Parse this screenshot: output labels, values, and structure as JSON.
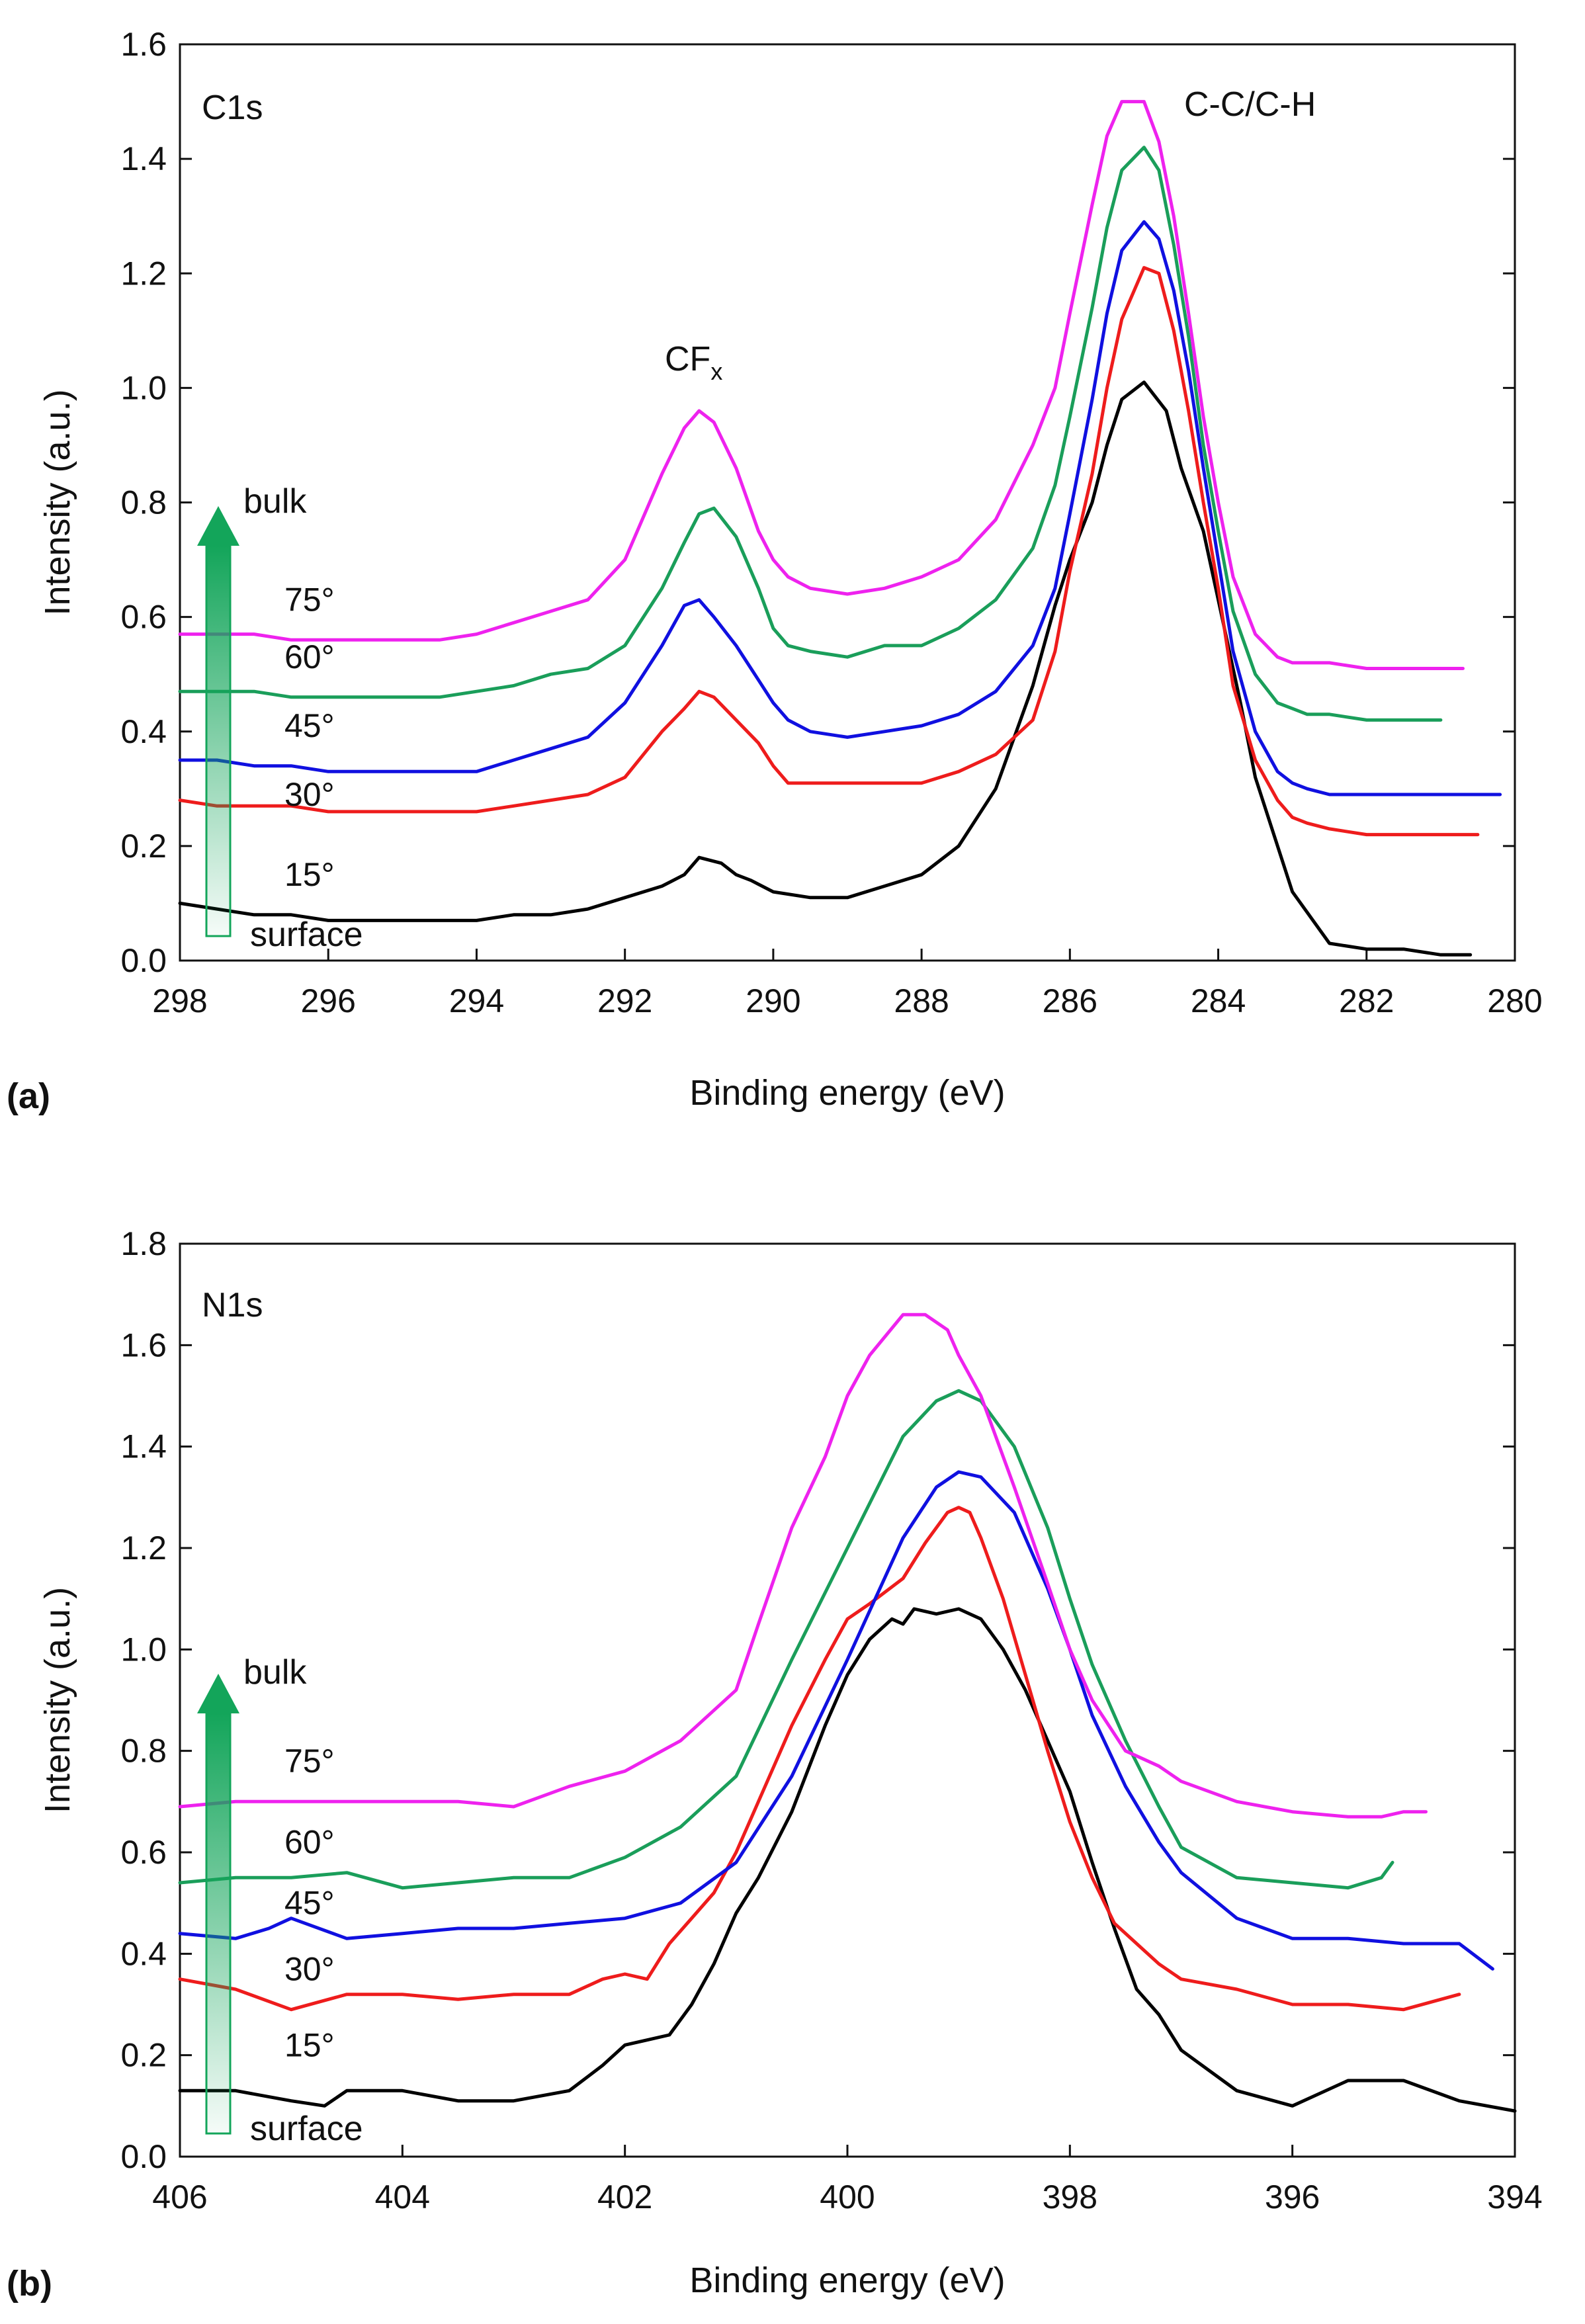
{
  "colors": {
    "deg15": "#000000",
    "deg30": "#ee1c1c",
    "deg45": "#1010e0",
    "deg60": "#1a9e5a",
    "deg75": "#ee22ee",
    "arrow": "#13a55a"
  },
  "chart_data": [
    {
      "type": "line",
      "panel": "(a)",
      "title": "C1s",
      "xlabel": "Binding energy (eV)",
      "ylabel": "Intensity (a.u.)",
      "xlim": [
        298,
        280
      ],
      "ylim": [
        0,
        1.6
      ],
      "xticks": [
        "298",
        "296",
        "294",
        "292",
        "290",
        "288",
        "286",
        "284",
        "282",
        "280"
      ],
      "yticks": [
        "0.0",
        "0.2",
        "0.4",
        "0.6",
        "0.8",
        "1.0",
        "1.2",
        "1.4",
        "1.6"
      ],
      "annotations": {
        "peak1_main": "CF",
        "peak1_sub": "x",
        "peak2": "C-C/C-H"
      },
      "arrow": {
        "top": "bulk",
        "bottom": "surface"
      },
      "series": [
        {
          "name": "15°",
          "color_key": "deg15",
          "x": [
            298,
            297.5,
            297,
            296.5,
            296,
            295.5,
            295,
            294.5,
            294,
            293.5,
            293,
            292.5,
            292,
            291.5,
            291.2,
            291,
            290.7,
            290.5,
            290.3,
            290,
            289.5,
            289,
            288.5,
            288,
            287.5,
            287,
            286.5,
            286.2,
            286,
            285.7,
            285.5,
            285.3,
            285,
            284.7,
            284.5,
            284.2,
            284,
            283.7,
            283.5,
            283,
            282.5,
            282,
            281.5,
            281,
            280.6
          ],
          "y": [
            0.1,
            0.09,
            0.08,
            0.08,
            0.07,
            0.07,
            0.07,
            0.07,
            0.07,
            0.08,
            0.08,
            0.09,
            0.11,
            0.13,
            0.15,
            0.18,
            0.17,
            0.15,
            0.14,
            0.12,
            0.11,
            0.11,
            0.13,
            0.15,
            0.2,
            0.3,
            0.48,
            0.62,
            0.7,
            0.8,
            0.9,
            0.98,
            1.01,
            0.96,
            0.86,
            0.75,
            0.63,
            0.45,
            0.32,
            0.12,
            0.03,
            0.02,
            0.02,
            0.01,
            0.01
          ]
        },
        {
          "name": "30°",
          "color_key": "deg30",
          "x": [
            298,
            297.5,
            297,
            296.5,
            296,
            295.5,
            295,
            294.5,
            294,
            293.5,
            293,
            292.5,
            292,
            291.5,
            291.2,
            291,
            290.8,
            290.5,
            290.2,
            290,
            289.8,
            289.5,
            289,
            288.5,
            288,
            287.5,
            287,
            286.5,
            286.2,
            286,
            285.7,
            285.5,
            285.3,
            285,
            284.8,
            284.6,
            284.4,
            284.2,
            284,
            283.8,
            283.5,
            283.2,
            283,
            282.8,
            282.5,
            282,
            281.5,
            281,
            280.5
          ],
          "y": [
            0.28,
            0.27,
            0.27,
            0.27,
            0.26,
            0.26,
            0.26,
            0.26,
            0.26,
            0.27,
            0.28,
            0.29,
            0.32,
            0.4,
            0.44,
            0.47,
            0.46,
            0.42,
            0.38,
            0.34,
            0.31,
            0.31,
            0.31,
            0.31,
            0.31,
            0.33,
            0.36,
            0.42,
            0.54,
            0.68,
            0.85,
            1.0,
            1.12,
            1.21,
            1.2,
            1.1,
            0.96,
            0.8,
            0.65,
            0.48,
            0.35,
            0.28,
            0.25,
            0.24,
            0.23,
            0.22,
            0.22,
            0.22,
            0.22
          ]
        },
        {
          "name": "45°",
          "color_key": "deg45",
          "x": [
            298,
            297.5,
            297,
            296.5,
            296,
            295.5,
            295,
            294.5,
            294,
            293.5,
            293,
            292.5,
            292,
            291.5,
            291.2,
            291,
            290.8,
            290.5,
            290.2,
            290,
            289.8,
            289.5,
            289,
            288.5,
            288,
            287.5,
            287,
            286.5,
            286.2,
            286,
            285.7,
            285.5,
            285.3,
            285,
            284.8,
            284.6,
            284.4,
            284.2,
            284,
            283.8,
            283.5,
            283.2,
            283,
            282.8,
            282.5,
            282,
            281.5,
            281,
            280.5,
            280.2
          ],
          "y": [
            0.35,
            0.35,
            0.34,
            0.34,
            0.33,
            0.33,
            0.33,
            0.33,
            0.33,
            0.35,
            0.37,
            0.39,
            0.45,
            0.55,
            0.62,
            0.63,
            0.6,
            0.55,
            0.49,
            0.45,
            0.42,
            0.4,
            0.39,
            0.4,
            0.41,
            0.43,
            0.47,
            0.55,
            0.65,
            0.78,
            0.98,
            1.13,
            1.24,
            1.29,
            1.26,
            1.17,
            1.03,
            0.86,
            0.7,
            0.54,
            0.4,
            0.33,
            0.31,
            0.3,
            0.29,
            0.29,
            0.29,
            0.29,
            0.29,
            0.29
          ]
        },
        {
          "name": "60°",
          "color_key": "deg60",
          "x": [
            298,
            297.5,
            297,
            296.5,
            296,
            295.5,
            295,
            294.5,
            294,
            293.5,
            293,
            292.5,
            292,
            291.5,
            291.2,
            291,
            290.8,
            290.5,
            290.2,
            290,
            289.8,
            289.5,
            289,
            288.5,
            288,
            287.5,
            287,
            286.5,
            286.2,
            286,
            285.7,
            285.5,
            285.3,
            285,
            284.8,
            284.6,
            284.4,
            284.2,
            284,
            283.8,
            283.5,
            283.2,
            283,
            282.8,
            282.5,
            282,
            281.5,
            281
          ],
          "y": [
            0.47,
            0.47,
            0.47,
            0.46,
            0.46,
            0.46,
            0.46,
            0.46,
            0.47,
            0.48,
            0.5,
            0.51,
            0.55,
            0.65,
            0.73,
            0.78,
            0.79,
            0.74,
            0.65,
            0.58,
            0.55,
            0.54,
            0.53,
            0.55,
            0.55,
            0.58,
            0.63,
            0.72,
            0.83,
            0.95,
            1.14,
            1.28,
            1.38,
            1.42,
            1.38,
            1.25,
            1.09,
            0.9,
            0.75,
            0.61,
            0.5,
            0.45,
            0.44,
            0.43,
            0.43,
            0.42,
            0.42,
            0.42
          ]
        },
        {
          "name": "75°",
          "color_key": "deg75",
          "x": [
            298,
            297.5,
            297,
            296.5,
            296,
            295.5,
            295,
            294.5,
            294,
            293.5,
            293,
            292.5,
            292,
            291.5,
            291.2,
            291,
            290.8,
            290.5,
            290.2,
            290,
            289.8,
            289.5,
            289,
            288.5,
            288,
            287.5,
            287,
            286.5,
            286.2,
            286,
            285.7,
            285.5,
            285.3,
            285,
            284.8,
            284.6,
            284.4,
            284.2,
            284,
            283.8,
            283.5,
            283.2,
            283,
            282.8,
            282.5,
            282,
            281.5,
            281,
            280.7
          ],
          "y": [
            0.57,
            0.57,
            0.57,
            0.56,
            0.56,
            0.56,
            0.56,
            0.56,
            0.57,
            0.59,
            0.61,
            0.63,
            0.7,
            0.85,
            0.93,
            0.96,
            0.94,
            0.86,
            0.75,
            0.7,
            0.67,
            0.65,
            0.64,
            0.65,
            0.67,
            0.7,
            0.77,
            0.9,
            1.0,
            1.13,
            1.32,
            1.44,
            1.5,
            1.5,
            1.43,
            1.3,
            1.13,
            0.95,
            0.8,
            0.67,
            0.57,
            0.53,
            0.52,
            0.52,
            0.52,
            0.51,
            0.51,
            0.51,
            0.51
          ]
        }
      ],
      "angle_labels": [
        {
          "text": "75°",
          "y": 0.63
        },
        {
          "text": "60°",
          "y": 0.53
        },
        {
          "text": "45°",
          "y": 0.41
        },
        {
          "text": "30°",
          "y": 0.29
        },
        {
          "text": "15°",
          "y": 0.15
        }
      ]
    },
    {
      "type": "line",
      "panel": "(b)",
      "title": "N1s",
      "xlabel": "Binding energy (eV)",
      "ylabel": "Intensity (a.u.)",
      "xlim": [
        406,
        394
      ],
      "ylim": [
        0,
        1.8
      ],
      "xticks": [
        "406",
        "404",
        "402",
        "400",
        "398",
        "396",
        "394"
      ],
      "yticks": [
        "0.0",
        "0.2",
        "0.4",
        "0.6",
        "0.8",
        "1.0",
        "1.2",
        "1.4",
        "1.6",
        "1.8"
      ],
      "arrow": {
        "top": "bulk",
        "bottom": "surface"
      },
      "series": [
        {
          "name": "15°",
          "color_key": "deg15",
          "x": [
            406,
            405.5,
            405,
            404.7,
            404.5,
            404,
            403.5,
            403,
            402.5,
            402.2,
            402,
            401.8,
            401.6,
            401.4,
            401.2,
            401,
            400.8,
            400.5,
            400.2,
            400,
            399.8,
            399.6,
            399.5,
            399.4,
            399.2,
            399,
            398.8,
            398.6,
            398.4,
            398.2,
            398,
            397.8,
            397.6,
            397.4,
            397.2,
            397,
            396.5,
            396,
            395.5,
            395,
            394.5,
            394
          ],
          "y": [
            0.13,
            0.13,
            0.11,
            0.1,
            0.13,
            0.13,
            0.11,
            0.11,
            0.13,
            0.18,
            0.22,
            0.23,
            0.24,
            0.3,
            0.38,
            0.48,
            0.55,
            0.68,
            0.85,
            0.95,
            1.02,
            1.06,
            1.05,
            1.08,
            1.07,
            1.08,
            1.06,
            1.0,
            0.92,
            0.82,
            0.72,
            0.58,
            0.45,
            0.33,
            0.28,
            0.21,
            0.13,
            0.1,
            0.15,
            0.15,
            0.11,
            0.09
          ]
        },
        {
          "name": "30°",
          "color_key": "deg30",
          "x": [
            406,
            405.5,
            405,
            404.5,
            404,
            403.5,
            403,
            402.5,
            402.2,
            402,
            401.8,
            401.6,
            401.4,
            401.2,
            401,
            400.8,
            400.5,
            400.2,
            400,
            399.8,
            399.5,
            399.3,
            399.1,
            399,
            398.9,
            398.8,
            398.6,
            398.4,
            398.2,
            398,
            397.8,
            397.6,
            397.4,
            397.2,
            397,
            396.5,
            396,
            395.5,
            395,
            394.5
          ],
          "y": [
            0.35,
            0.33,
            0.29,
            0.32,
            0.32,
            0.31,
            0.32,
            0.32,
            0.35,
            0.36,
            0.35,
            0.42,
            0.47,
            0.52,
            0.6,
            0.7,
            0.85,
            0.98,
            1.06,
            1.09,
            1.14,
            1.21,
            1.27,
            1.28,
            1.27,
            1.22,
            1.1,
            0.95,
            0.8,
            0.66,
            0.55,
            0.46,
            0.42,
            0.38,
            0.35,
            0.33,
            0.3,
            0.3,
            0.29,
            0.32
          ]
        },
        {
          "name": "45°",
          "color_key": "deg45",
          "x": [
            406,
            405.5,
            405.2,
            405,
            404.5,
            404,
            403.5,
            403,
            402.5,
            402,
            401.5,
            401,
            400.5,
            400,
            399.5,
            399.2,
            399,
            398.8,
            398.5,
            398.2,
            398,
            397.8,
            397.5,
            397.2,
            397,
            396.5,
            396,
            395.5,
            395,
            394.5,
            394.2
          ],
          "y": [
            0.44,
            0.43,
            0.45,
            0.47,
            0.43,
            0.44,
            0.45,
            0.45,
            0.46,
            0.47,
            0.5,
            0.58,
            0.75,
            0.98,
            1.22,
            1.32,
            1.35,
            1.34,
            1.27,
            1.12,
            1.0,
            0.87,
            0.73,
            0.62,
            0.56,
            0.47,
            0.43,
            0.43,
            0.42,
            0.42,
            0.37
          ]
        },
        {
          "name": "60°",
          "color_key": "deg60",
          "x": [
            406,
            405.5,
            405,
            404.5,
            404,
            403.5,
            403,
            402.5,
            402,
            401.5,
            401,
            400.5,
            400,
            399.5,
            399.2,
            399,
            398.8,
            398.5,
            398.2,
            398,
            397.8,
            397.5,
            397.2,
            397,
            396.5,
            396,
            395.5,
            395.2,
            395.1
          ],
          "y": [
            0.54,
            0.55,
            0.55,
            0.56,
            0.53,
            0.54,
            0.55,
            0.55,
            0.59,
            0.65,
            0.75,
            0.98,
            1.2,
            1.42,
            1.49,
            1.51,
            1.49,
            1.4,
            1.24,
            1.1,
            0.97,
            0.82,
            0.69,
            0.61,
            0.55,
            0.54,
            0.53,
            0.55,
            0.58
          ]
        },
        {
          "name": "75°",
          "color_key": "deg75",
          "x": [
            406,
            405.5,
            405,
            404.5,
            404,
            403.5,
            403,
            402.5,
            402,
            401.5,
            401,
            400.8,
            400.5,
            400.2,
            400,
            399.8,
            399.5,
            399.3,
            399.1,
            399,
            398.8,
            398.5,
            398.2,
            398,
            397.8,
            397.5,
            397.2,
            397,
            396.5,
            396,
            395.5,
            395.2,
            395,
            394.8
          ],
          "y": [
            0.69,
            0.7,
            0.7,
            0.7,
            0.7,
            0.7,
            0.69,
            0.73,
            0.76,
            0.82,
            0.92,
            1.05,
            1.24,
            1.38,
            1.5,
            1.58,
            1.66,
            1.66,
            1.63,
            1.58,
            1.5,
            1.32,
            1.13,
            1.0,
            0.9,
            0.8,
            0.77,
            0.74,
            0.7,
            0.68,
            0.67,
            0.67,
            0.68,
            0.68
          ]
        }
      ],
      "angle_labels": [
        {
          "text": "75°",
          "y": 0.78
        },
        {
          "text": "60°",
          "y": 0.62
        },
        {
          "text": "45°",
          "y": 0.5
        },
        {
          "text": "30°",
          "y": 0.37
        },
        {
          "text": "15°",
          "y": 0.22
        }
      ]
    }
  ]
}
